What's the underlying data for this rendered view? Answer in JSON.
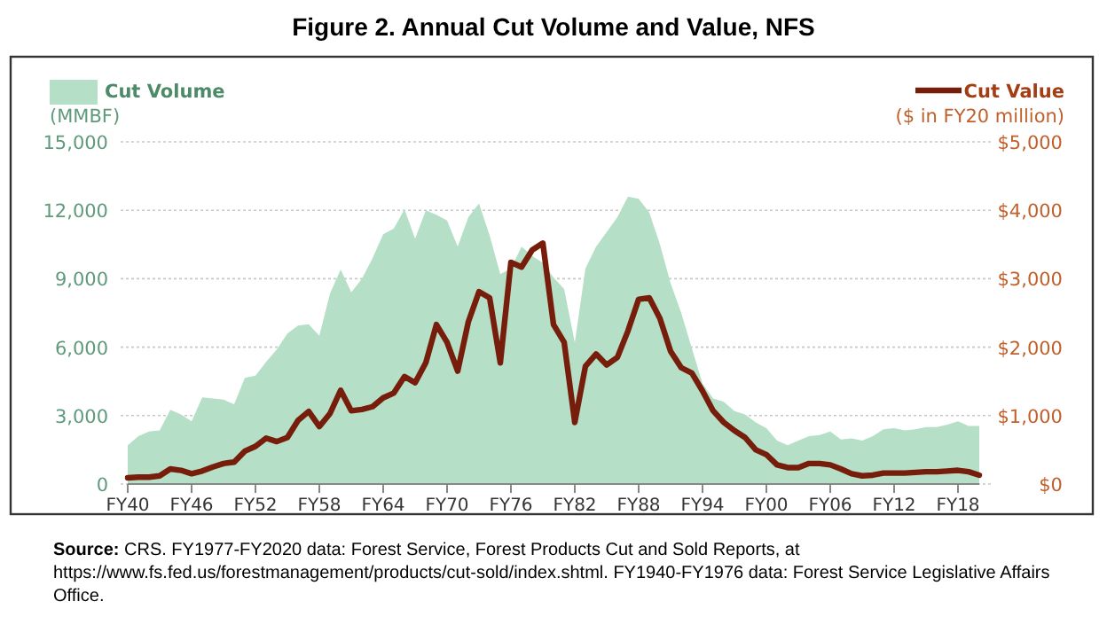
{
  "chart_data": {
    "type": "area",
    "title": "Figure 2. Annual Cut Volume and Value, NFS",
    "categories": [
      "FY40",
      null,
      null,
      null,
      null,
      null,
      "FY46",
      null,
      null,
      null,
      null,
      null,
      "FY52",
      null,
      null,
      null,
      null,
      null,
      "FY58",
      null,
      null,
      null,
      null,
      null,
      "FY64",
      null,
      null,
      null,
      null,
      null,
      "FY70",
      null,
      null,
      null,
      null,
      null,
      "FY76",
      null,
      null,
      null,
      null,
      null,
      "FY82",
      null,
      null,
      null,
      null,
      null,
      "FY88",
      null,
      null,
      null,
      null,
      null,
      "FY94",
      null,
      null,
      null,
      null,
      null,
      "FY00",
      null,
      null,
      null,
      null,
      null,
      "FY06",
      null,
      null,
      null,
      null,
      null,
      "FY12",
      null,
      null,
      null,
      null,
      null,
      "FY18",
      null,
      null
    ],
    "series": [
      {
        "name": "Cut Volume",
        "type": "area",
        "color": "#b5dfc6",
        "values": [
          1700,
          2100,
          2300,
          2350,
          3250,
          3050,
          2750,
          3800,
          3750,
          3700,
          3500,
          4650,
          4750,
          5350,
          5900,
          6600,
          6950,
          7000,
          6500,
          8350,
          9400,
          8400,
          9000,
          9900,
          10950,
          11200,
          12050,
          10750,
          12000,
          11800,
          11550,
          10400,
          11700,
          12300,
          10900,
          9200,
          9450,
          10400,
          10000,
          9700,
          9050,
          8550,
          6200,
          9450,
          10400,
          11050,
          11700,
          12600,
          12500,
          11900,
          10500,
          8800,
          7500,
          5950,
          4400,
          3750,
          3600,
          3200,
          3050,
          2700,
          2450,
          1900,
          1700,
          1900,
          2100,
          2150,
          2300,
          1950,
          2000,
          1900,
          2100,
          2400,
          2450,
          2350,
          2400,
          2500,
          2500,
          2600,
          2750,
          2550,
          2550
        ]
      },
      {
        "name": "Cut Value",
        "type": "line",
        "axis": "y2",
        "color": "#761d0b",
        "values": [
          90,
          100,
          100,
          120,
          220,
          200,
          150,
          190,
          250,
          300,
          320,
          480,
          550,
          670,
          620,
          680,
          930,
          1060,
          840,
          1030,
          1370,
          1070,
          1090,
          1130,
          1260,
          1330,
          1570,
          1480,
          1770,
          2330,
          2070,
          1650,
          2370,
          2810,
          2720,
          1770,
          3240,
          3170,
          3420,
          3520,
          2330,
          2070,
          900,
          1720,
          1900,
          1740,
          1850,
          2240,
          2700,
          2720,
          2420,
          1940,
          1700,
          1620,
          1360,
          1070,
          900,
          780,
          680,
          500,
          430,
          280,
          240,
          240,
          300,
          300,
          280,
          220,
          150,
          120,
          130,
          160,
          160,
          160,
          170,
          180,
          180,
          190,
          200,
          180,
          130
        ]
      }
    ],
    "ylim": [
      0,
      15000
    ],
    "yticks": [
      0,
      {
        "value": 3000,
        "label": "3,000"
      },
      {
        "value": 6000,
        "label": "6,000"
      },
      {
        "value": 9000,
        "label": "9,000"
      },
      {
        "value": 12000,
        "label": "12,000"
      },
      {
        "value": 15000,
        "label": "15,000"
      }
    ],
    "y2lim": [
      0,
      5000
    ],
    "y2ticks": [
      {
        "value": 0,
        "label": "$0"
      },
      {
        "value": 1000,
        "label": "$1,000"
      },
      {
        "value": 2000,
        "label": "$2,000"
      },
      {
        "value": 3000,
        "label": "$3,000"
      },
      {
        "value": 4000,
        "label": "$4,000"
      },
      {
        "value": 5000,
        "label": "$5,000"
      }
    ],
    "ylabel": "(MMBF)",
    "y2label": "($ in FY20 million)",
    "grid": "y",
    "legend": "top",
    "line_style": "solid",
    "annotations": [
      "Source: CRS. FY1977-FY2020 data: Forest Service, Forest Products Cut and Sold Reports, at https://www.fs.fed.us/forestmanagement/products/cut-sold/index.shtml.  FY1940-FY1976 data: Forest Service Legislative Affairs Office."
    ]
  }
}
